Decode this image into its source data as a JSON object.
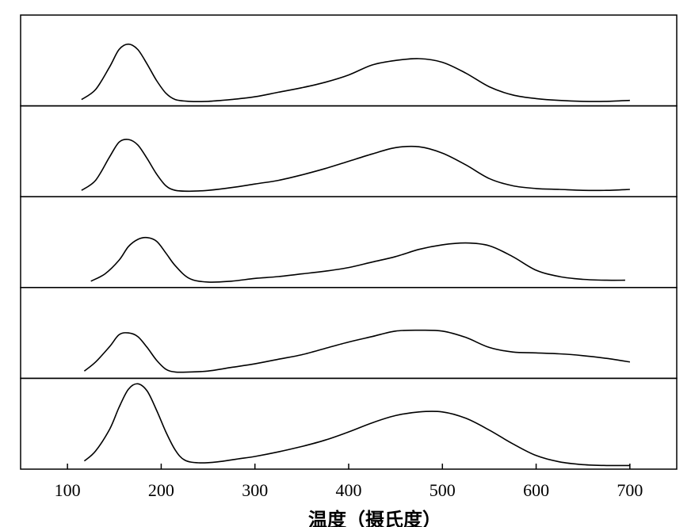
{
  "chart_data": {
    "type": "line",
    "title": "",
    "xlabel": "温度（摄氏度）",
    "ylabel": "",
    "xlim": [
      50,
      750
    ],
    "xticks": [
      100,
      200,
      300,
      400,
      500,
      600,
      700
    ],
    "tick_labels": [
      "100",
      "200",
      "300",
      "400",
      "500",
      "600",
      "700"
    ],
    "grid": false,
    "legend": "none",
    "line_color": "#000000",
    "panels": [
      {
        "ylim": [
          0,
          1
        ],
        "x": [
          115,
          130,
          145,
          155,
          165,
          175,
          185,
          195,
          205,
          215,
          230,
          250,
          275,
          300,
          325,
          350,
          375,
          400,
          425,
          450,
          475,
          500,
          525,
          550,
          575,
          600,
          625,
          650,
          675,
          700
        ],
        "y": [
          0.07,
          0.18,
          0.43,
          0.62,
          0.68,
          0.62,
          0.46,
          0.28,
          0.14,
          0.07,
          0.05,
          0.05,
          0.07,
          0.1,
          0.15,
          0.2,
          0.26,
          0.34,
          0.45,
          0.5,
          0.52,
          0.48,
          0.36,
          0.21,
          0.12,
          0.08,
          0.06,
          0.05,
          0.05,
          0.06
        ]
      },
      {
        "ylim": [
          0,
          1
        ],
        "x": [
          115,
          130,
          145,
          155,
          165,
          175,
          185,
          195,
          205,
          215,
          230,
          250,
          275,
          300,
          325,
          350,
          375,
          400,
          425,
          450,
          475,
          500,
          525,
          550,
          575,
          600,
          625,
          650,
          675,
          700
        ],
        "y": [
          0.07,
          0.18,
          0.44,
          0.6,
          0.63,
          0.57,
          0.42,
          0.25,
          0.12,
          0.07,
          0.06,
          0.07,
          0.1,
          0.14,
          0.18,
          0.24,
          0.31,
          0.39,
          0.47,
          0.54,
          0.55,
          0.48,
          0.35,
          0.2,
          0.12,
          0.09,
          0.08,
          0.07,
          0.07,
          0.08
        ]
      },
      {
        "ylim": [
          0,
          1
        ],
        "x": [
          125,
          140,
          155,
          165,
          175,
          185,
          195,
          205,
          215,
          230,
          250,
          275,
          300,
          325,
          350,
          375,
          400,
          425,
          450,
          475,
          500,
          525,
          550,
          575,
          600,
          625,
          650,
          675,
          695
        ],
        "y": [
          0.07,
          0.15,
          0.3,
          0.45,
          0.53,
          0.55,
          0.51,
          0.38,
          0.24,
          0.1,
          0.06,
          0.07,
          0.1,
          0.12,
          0.15,
          0.18,
          0.22,
          0.28,
          0.34,
          0.42,
          0.47,
          0.49,
          0.46,
          0.34,
          0.19,
          0.12,
          0.09,
          0.08,
          0.08
        ]
      },
      {
        "ylim": [
          0,
          1
        ],
        "x": [
          118,
          130,
          145,
          155,
          165,
          175,
          185,
          195,
          205,
          215,
          230,
          250,
          275,
          300,
          325,
          350,
          375,
          400,
          425,
          450,
          475,
          500,
          525,
          550,
          575,
          600,
          625,
          650,
          675,
          700
        ],
        "y": [
          0.08,
          0.18,
          0.35,
          0.48,
          0.5,
          0.46,
          0.34,
          0.2,
          0.1,
          0.07,
          0.07,
          0.08,
          0.12,
          0.16,
          0.21,
          0.26,
          0.33,
          0.4,
          0.46,
          0.52,
          0.53,
          0.52,
          0.45,
          0.34,
          0.29,
          0.28,
          0.27,
          0.25,
          0.22,
          0.18
        ]
      },
      {
        "ylim": [
          0,
          1
        ],
        "x": [
          118,
          130,
          145,
          155,
          165,
          175,
          185,
          195,
          205,
          215,
          225,
          240,
          260,
          280,
          300,
          325,
          350,
          375,
          400,
          425,
          450,
          475,
          500,
          525,
          550,
          575,
          600,
          625,
          650,
          675,
          700
        ],
        "y": [
          0.09,
          0.2,
          0.44,
          0.68,
          0.88,
          0.94,
          0.86,
          0.65,
          0.41,
          0.21,
          0.1,
          0.07,
          0.08,
          0.11,
          0.14,
          0.19,
          0.25,
          0.32,
          0.41,
          0.51,
          0.59,
          0.63,
          0.63,
          0.56,
          0.43,
          0.28,
          0.15,
          0.08,
          0.05,
          0.04,
          0.04
        ]
      }
    ]
  }
}
